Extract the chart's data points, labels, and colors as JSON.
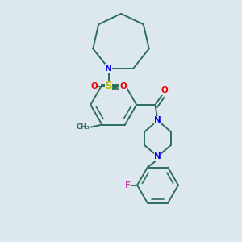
{
  "bg_color": "#dde8ee",
  "line_color": "#2d6e5a",
  "bond_width": 1.4,
  "atom_colors": {
    "N": "#0000ee",
    "O": "#ee0000",
    "S": "#bbbb00",
    "F": "#cc44aa",
    "C": "#2d6e5a"
  },
  "font_size_atom": 7.5
}
